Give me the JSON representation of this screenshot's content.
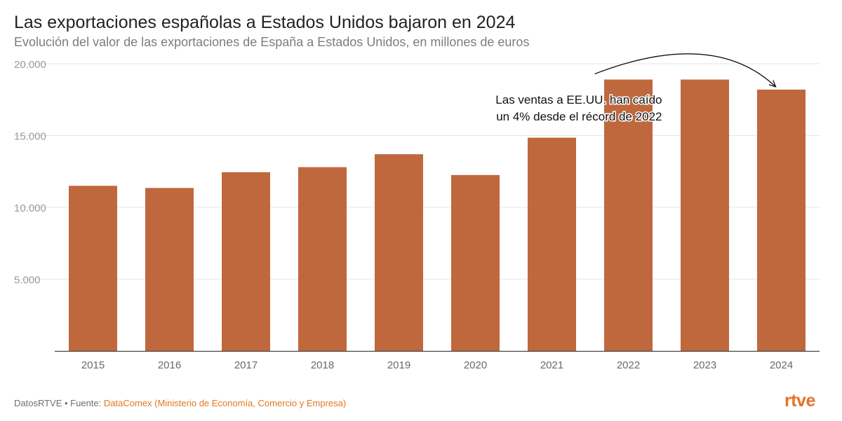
{
  "title": "Las exportaciones españolas a Estados Unidos bajaron en 2024",
  "subtitle": "Evolución del valor de las exportaciones de España a Estados Unidos, en millones de euros",
  "footer": {
    "prefix": "DatosRTVE • Fuente: ",
    "source": "DataComex (Ministerio de Economía, Comercio y Empresa)"
  },
  "logo": "rtve",
  "colors": {
    "bar": "#c0683d",
    "accent": "#e3732a",
    "text": "#222222"
  },
  "chart_data": {
    "type": "bar",
    "title": "Las exportaciones españolas a Estados Unidos bajaron en 2024",
    "xlabel": "",
    "ylabel": "",
    "categories": [
      "2015",
      "2016",
      "2017",
      "2018",
      "2019",
      "2020",
      "2021",
      "2022",
      "2023",
      "2024"
    ],
    "values": [
      11500,
      11350,
      12450,
      12800,
      13700,
      12250,
      14850,
      18900,
      18900,
      18200
    ],
    "ylim": [
      0,
      20000
    ],
    "yticks": [
      5000,
      10000,
      15000,
      20000
    ],
    "ytick_labels": [
      "5.000",
      "10.000",
      "15.000",
      "20.000"
    ],
    "grid": true,
    "annotation": {
      "lines": [
        "Las ventas a EE.UU. han caído",
        "un 4% desde el récord de 2022"
      ],
      "from_category": "2022",
      "to_category": "2024"
    }
  }
}
